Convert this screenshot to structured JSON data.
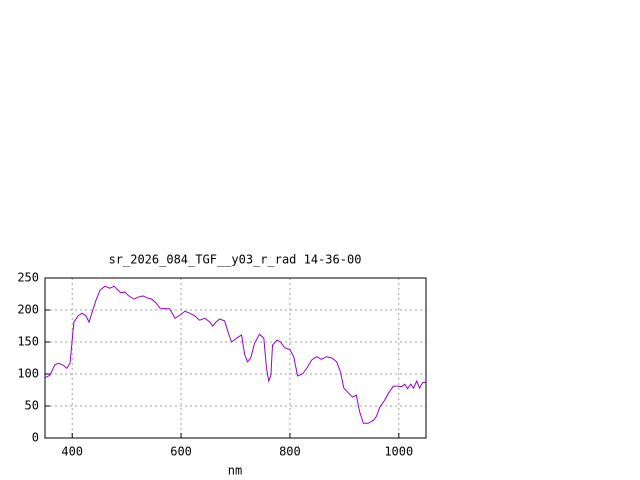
{
  "chart_data": {
    "type": "line",
    "title": "sr_2026_084_TGF__y03_r_rad 14-36-00",
    "xlabel": "nm",
    "xlim": [
      350,
      1050
    ],
    "ylim": [
      0,
      250
    ],
    "xticks": [
      400,
      600,
      800,
      1000
    ],
    "yticks": [
      0,
      50,
      100,
      150,
      200,
      250
    ],
    "grid": true,
    "x": [
      350,
      359,
      368,
      374,
      383,
      390,
      396,
      400,
      403,
      411,
      418,
      425,
      431,
      436,
      444,
      451,
      460,
      469,
      477,
      484,
      489,
      497,
      504,
      513,
      521,
      530,
      537,
      546,
      554,
      561,
      570,
      579,
      589,
      598,
      607,
      616,
      625,
      634,
      644,
      653,
      658,
      664,
      671,
      680,
      688,
      693,
      702,
      711,
      717,
      722,
      728,
      735,
      744,
      752,
      757,
      761,
      765,
      768,
      776,
      783,
      790,
      800,
      807,
      814,
      823,
      831,
      840,
      849,
      858,
      867,
      877,
      886,
      893,
      899,
      908,
      915,
      922,
      928,
      935,
      944,
      954,
      959,
      965,
      974,
      981,
      990,
      998,
      1005,
      1011,
      1016,
      1022,
      1027,
      1033,
      1038,
      1044,
      1049
    ],
    "series": [
      {
        "color": "#9400d3",
        "values": [
          94,
          98,
          114,
          117,
          114,
          109,
          117,
          153,
          181,
          191,
          195,
          191,
          181,
          195,
          216,
          231,
          237,
          234,
          237,
          231,
          227,
          228,
          222,
          217,
          220,
          222,
          219,
          217,
          211,
          203,
          202,
          202,
          187,
          192,
          198,
          195,
          191,
          184,
          187,
          181,
          175,
          181,
          186,
          183,
          161,
          150,
          156,
          161,
          130,
          119,
          125,
          148,
          162,
          156,
          109,
          89,
          98,
          145,
          153,
          150,
          141,
          138,
          127,
          97,
          100,
          109,
          122,
          127,
          123,
          127,
          125,
          119,
          103,
          78,
          70,
          64,
          67,
          41,
          23,
          23,
          28,
          34,
          48,
          59,
          70,
          81,
          81,
          80,
          84,
          77,
          84,
          78,
          89,
          78,
          87,
          87
        ]
      }
    ]
  }
}
